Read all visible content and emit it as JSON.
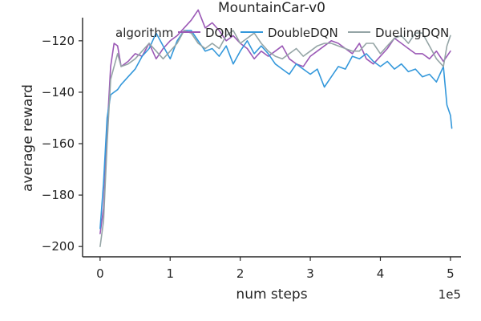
{
  "chart_data": {
    "type": "line",
    "title": "MountainCar-v0",
    "xlabel": "num steps",
    "ylabel": "average reward",
    "x_scale_label": "1e5",
    "xlim": [
      -0.25,
      5.15
    ],
    "ylim": [
      -204,
      -111
    ],
    "x_ticks": [
      0,
      1,
      2,
      3,
      4,
      5
    ],
    "x_tick_labels": [
      "0",
      "1",
      "2",
      "3",
      "4",
      "5"
    ],
    "y_ticks": [
      -200,
      -180,
      -160,
      -140,
      -120
    ],
    "y_tick_labels": [
      "−200",
      "−180",
      "−160",
      "−140",
      "−120"
    ],
    "grid": false,
    "legend": {
      "title": "algorithm",
      "placement": "top",
      "entries": [
        "DQN",
        "DoubleDQN",
        "DuelingDQN"
      ]
    },
    "series": [
      {
        "name": "DQN",
        "color": "#9b59b6",
        "points": [
          [
            0.0,
            -195
          ],
          [
            0.05,
            -185
          ],
          [
            0.1,
            -155
          ],
          [
            0.15,
            -130
          ],
          [
            0.2,
            -121
          ],
          [
            0.25,
            -122
          ],
          [
            0.3,
            -130
          ],
          [
            0.4,
            -128
          ],
          [
            0.5,
            -125
          ],
          [
            0.6,
            -126
          ],
          [
            0.7,
            -121
          ],
          [
            0.8,
            -127
          ],
          [
            0.9,
            -123
          ],
          [
            1.0,
            -120
          ],
          [
            1.1,
            -118
          ],
          [
            1.2,
            -115
          ],
          [
            1.3,
            -112
          ],
          [
            1.4,
            -108
          ],
          [
            1.5,
            -115
          ],
          [
            1.6,
            -113
          ],
          [
            1.7,
            -116
          ],
          [
            1.8,
            -120
          ],
          [
            1.9,
            -118
          ],
          [
            2.0,
            -121
          ],
          [
            2.1,
            -123
          ],
          [
            2.2,
            -127
          ],
          [
            2.3,
            -124
          ],
          [
            2.4,
            -126
          ],
          [
            2.5,
            -124
          ],
          [
            2.6,
            -122
          ],
          [
            2.7,
            -127
          ],
          [
            2.8,
            -129
          ],
          [
            2.9,
            -130
          ],
          [
            3.0,
            -126
          ],
          [
            3.1,
            -124
          ],
          [
            3.2,
            -122
          ],
          [
            3.3,
            -120
          ],
          [
            3.4,
            -121
          ],
          [
            3.5,
            -123
          ],
          [
            3.6,
            -125
          ],
          [
            3.7,
            -121
          ],
          [
            3.8,
            -127
          ],
          [
            3.9,
            -129
          ],
          [
            4.0,
            -126
          ],
          [
            4.1,
            -123
          ],
          [
            4.2,
            -119
          ],
          [
            4.3,
            -121
          ],
          [
            4.4,
            -123
          ],
          [
            4.5,
            -125
          ],
          [
            4.6,
            -125
          ],
          [
            4.7,
            -127
          ],
          [
            4.8,
            -124
          ],
          [
            4.9,
            -128
          ],
          [
            5.0,
            -124
          ]
        ]
      },
      {
        "name": "DoubleDQN",
        "color": "#3498db",
        "points": [
          [
            0.0,
            -193
          ],
          [
            0.05,
            -175
          ],
          [
            0.1,
            -150
          ],
          [
            0.15,
            -141
          ],
          [
            0.2,
            -140
          ],
          [
            0.25,
            -139
          ],
          [
            0.3,
            -137
          ],
          [
            0.4,
            -134
          ],
          [
            0.5,
            -131
          ],
          [
            0.6,
            -126
          ],
          [
            0.7,
            -123
          ],
          [
            0.8,
            -117
          ],
          [
            0.9,
            -122
          ],
          [
            1.0,
            -127
          ],
          [
            1.1,
            -120
          ],
          [
            1.2,
            -116
          ],
          [
            1.3,
            -116
          ],
          [
            1.4,
            -120
          ],
          [
            1.5,
            -124
          ],
          [
            1.6,
            -123
          ],
          [
            1.7,
            -126
          ],
          [
            1.8,
            -122
          ],
          [
            1.9,
            -129
          ],
          [
            2.0,
            -124
          ],
          [
            2.1,
            -120
          ],
          [
            2.2,
            -125
          ],
          [
            2.3,
            -122
          ],
          [
            2.4,
            -125
          ],
          [
            2.5,
            -129
          ],
          [
            2.6,
            -131
          ],
          [
            2.7,
            -133
          ],
          [
            2.8,
            -129
          ],
          [
            2.9,
            -131
          ],
          [
            3.0,
            -133
          ],
          [
            3.1,
            -131
          ],
          [
            3.2,
            -138
          ],
          [
            3.3,
            -134
          ],
          [
            3.4,
            -130
          ],
          [
            3.5,
            -131
          ],
          [
            3.6,
            -126
          ],
          [
            3.7,
            -127
          ],
          [
            3.8,
            -125
          ],
          [
            3.9,
            -128
          ],
          [
            4.0,
            -130
          ],
          [
            4.1,
            -128
          ],
          [
            4.2,
            -131
          ],
          [
            4.3,
            -129
          ],
          [
            4.4,
            -132
          ],
          [
            4.5,
            -131
          ],
          [
            4.6,
            -134
          ],
          [
            4.7,
            -133
          ],
          [
            4.8,
            -136
          ],
          [
            4.9,
            -130
          ],
          [
            4.95,
            -145
          ],
          [
            5.0,
            -149
          ],
          [
            5.02,
            -154
          ]
        ]
      },
      {
        "name": "DuelingDQN",
        "color": "#95a5a6",
        "points": [
          [
            0.0,
            -200
          ],
          [
            0.05,
            -190
          ],
          [
            0.1,
            -160
          ],
          [
            0.15,
            -135
          ],
          [
            0.2,
            -130
          ],
          [
            0.25,
            -125
          ],
          [
            0.3,
            -130
          ],
          [
            0.4,
            -129
          ],
          [
            0.5,
            -127
          ],
          [
            0.6,
            -124
          ],
          [
            0.7,
            -121
          ],
          [
            0.8,
            -124
          ],
          [
            0.9,
            -127
          ],
          [
            1.0,
            -124
          ],
          [
            1.1,
            -121
          ],
          [
            1.2,
            -116
          ],
          [
            1.3,
            -117
          ],
          [
            1.4,
            -121
          ],
          [
            1.5,
            -123
          ],
          [
            1.6,
            -121
          ],
          [
            1.7,
            -123
          ],
          [
            1.8,
            -118
          ],
          [
            1.9,
            -116
          ],
          [
            2.0,
            -121
          ],
          [
            2.1,
            -119
          ],
          [
            2.2,
            -117
          ],
          [
            2.3,
            -121
          ],
          [
            2.4,
            -124
          ],
          [
            2.5,
            -126
          ],
          [
            2.6,
            -127
          ],
          [
            2.7,
            -125
          ],
          [
            2.8,
            -123
          ],
          [
            2.9,
            -126
          ],
          [
            3.0,
            -124
          ],
          [
            3.1,
            -122
          ],
          [
            3.2,
            -121
          ],
          [
            3.3,
            -121
          ],
          [
            3.4,
            -122
          ],
          [
            3.5,
            -123
          ],
          [
            3.6,
            -124
          ],
          [
            3.7,
            -124
          ],
          [
            3.8,
            -121
          ],
          [
            3.9,
            -121
          ],
          [
            4.0,
            -125
          ],
          [
            4.1,
            -122
          ],
          [
            4.2,
            -119
          ],
          [
            4.3,
            -118
          ],
          [
            4.4,
            -121
          ],
          [
            4.5,
            -117
          ],
          [
            4.6,
            -117
          ],
          [
            4.7,
            -122
          ],
          [
            4.8,
            -127
          ],
          [
            4.9,
            -130
          ],
          [
            4.95,
            -122
          ],
          [
            5.0,
            -118
          ]
        ]
      }
    ]
  }
}
